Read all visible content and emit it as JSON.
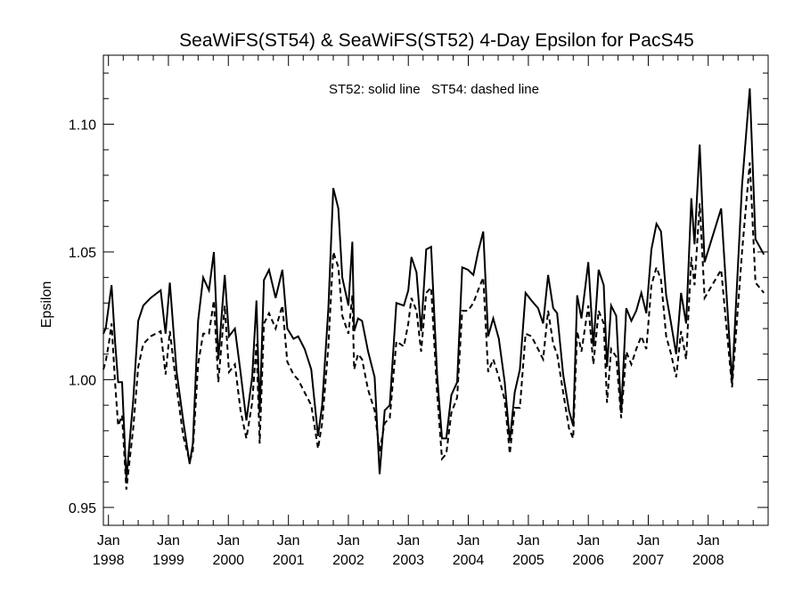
{
  "chart_data": {
    "type": "line",
    "title": "SeaWiFS(ST54) & SeaWiFS(ST52) 4-Day Epsilon for PacS45",
    "ylabel": "Epsilon",
    "xlabel": "",
    "annotation": "ST52: solid line   ST54: dashed line",
    "xlim": [
      "1997-12-01",
      "2008-12-31"
    ],
    "ylim": [
      0.943,
      1.127
    ],
    "yticks": [
      {
        "value": 0.95,
        "label": "0.95"
      },
      {
        "value": 1.0,
        "label": "1.00"
      },
      {
        "value": 1.05,
        "label": "1.05"
      },
      {
        "value": 1.1,
        "label": "1.10"
      }
    ],
    "xticks": [
      {
        "date": "1998-01-01",
        "month": "Jan",
        "year": "1998"
      },
      {
        "date": "1999-01-01",
        "month": "Jan",
        "year": "1999"
      },
      {
        "date": "2000-01-01",
        "month": "Jan",
        "year": "2000"
      },
      {
        "date": "2001-01-01",
        "month": "Jan",
        "year": "2001"
      },
      {
        "date": "2002-01-01",
        "month": "Jan",
        "year": "2002"
      },
      {
        "date": "2003-01-01",
        "month": "Jan",
        "year": "2003"
      },
      {
        "date": "2004-01-01",
        "month": "Jan",
        "year": "2004"
      },
      {
        "date": "2005-01-01",
        "month": "Jan",
        "year": "2005"
      },
      {
        "date": "2006-01-01",
        "month": "Jan",
        "year": "2006"
      },
      {
        "date": "2007-01-01",
        "month": "Jan",
        "year": "2007"
      },
      {
        "date": "2008-01-01",
        "month": "Jan",
        "year": "2008"
      }
    ],
    "grid": false,
    "series": [
      {
        "name": "ST52",
        "style": "solid",
        "color": "#000000",
        "points": [
          [
            "1997-12-01",
            1.018
          ],
          [
            "1997-12-15",
            1.02
          ],
          [
            "1998-01-05",
            1.03
          ],
          [
            "1998-01-20",
            1.037
          ],
          [
            "1998-02-10",
            1.015
          ],
          [
            "1998-03-01",
            0.999
          ],
          [
            "1998-03-25",
            0.999
          ],
          [
            "1998-04-20",
            0.961
          ],
          [
            "1998-06-01",
            0.992
          ],
          [
            "1998-07-01",
            1.023
          ],
          [
            "1998-08-01",
            1.029
          ],
          [
            "1998-09-15",
            1.032
          ],
          [
            "1998-11-15",
            1.035
          ],
          [
            "1998-12-15",
            1.018
          ],
          [
            "1999-01-10",
            1.038
          ],
          [
            "1999-02-20",
            1.003
          ],
          [
            "1999-04-01",
            0.984
          ],
          [
            "1999-05-10",
            0.967
          ],
          [
            "1999-05-30",
            0.975
          ],
          [
            "1999-07-01",
            1.023
          ],
          [
            "1999-08-01",
            1.04
          ],
          [
            "1999-09-05",
            1.035
          ],
          [
            "1999-10-05",
            1.05
          ],
          [
            "1999-11-01",
            1.008
          ],
          [
            "1999-12-10",
            1.041
          ],
          [
            "2000-01-05",
            1.017
          ],
          [
            "2000-02-10",
            1.02
          ],
          [
            "2000-03-15",
            1.003
          ],
          [
            "2000-04-20",
            0.984
          ],
          [
            "2000-05-25",
            1.001
          ],
          [
            "2000-06-20",
            1.031
          ],
          [
            "2000-07-10",
            0.987
          ],
          [
            "2000-08-05",
            1.039
          ],
          [
            "2000-09-05",
            1.043
          ],
          [
            "2000-10-15",
            1.032
          ],
          [
            "2000-11-25",
            1.043
          ],
          [
            "2000-12-25",
            1.02
          ],
          [
            "2001-02-01",
            1.016
          ],
          [
            "2001-03-01",
            1.017
          ],
          [
            "2001-04-10",
            1.012
          ],
          [
            "2001-05-20",
            1.004
          ],
          [
            "2001-06-30",
            0.978
          ],
          [
            "2001-07-25",
            0.99
          ],
          [
            "2001-09-01",
            1.028
          ],
          [
            "2001-10-01",
            1.075
          ],
          [
            "2001-11-01",
            1.067
          ],
          [
            "2001-11-25",
            1.04
          ],
          [
            "2002-01-01",
            1.029
          ],
          [
            "2002-01-25",
            1.054
          ],
          [
            "2002-02-05",
            1.019
          ],
          [
            "2002-03-01",
            1.024
          ],
          [
            "2002-03-25",
            1.023
          ],
          [
            "2002-05-01",
            1.011
          ],
          [
            "2002-06-10",
            1.001
          ],
          [
            "2002-07-10",
            0.963
          ],
          [
            "2002-08-10",
            0.988
          ],
          [
            "2002-09-10",
            0.99
          ],
          [
            "2002-10-20",
            1.03
          ],
          [
            "2002-12-05",
            1.029
          ],
          [
            "2003-01-01",
            1.035
          ],
          [
            "2003-01-20",
            1.048
          ],
          [
            "2003-02-20",
            1.042
          ],
          [
            "2003-03-20",
            1.019
          ],
          [
            "2003-04-20",
            1.051
          ],
          [
            "2003-05-20",
            1.052
          ],
          [
            "2003-06-25",
            1.002
          ],
          [
            "2003-07-25",
            0.977
          ],
          [
            "2003-08-20",
            0.977
          ],
          [
            "2003-09-20",
            0.994
          ],
          [
            "2003-10-25",
            0.999
          ],
          [
            "2003-11-25",
            1.044
          ],
          [
            "2003-12-30",
            1.043
          ],
          [
            "2004-02-01",
            1.041
          ],
          [
            "2004-03-01",
            1.05
          ],
          [
            "2004-04-01",
            1.058
          ],
          [
            "2004-05-01",
            1.017
          ],
          [
            "2004-06-01",
            1.024
          ],
          [
            "2004-07-05",
            1.016
          ],
          [
            "2004-08-10",
            0.999
          ],
          [
            "2004-09-10",
            0.976
          ],
          [
            "2004-10-10",
            0.995
          ],
          [
            "2004-11-10",
            1.004
          ],
          [
            "2004-12-15",
            1.034
          ],
          [
            "2005-01-20",
            1.031
          ],
          [
            "2005-03-01",
            1.028
          ],
          [
            "2005-04-01",
            1.022
          ],
          [
            "2005-05-01",
            1.041
          ],
          [
            "2005-06-01",
            1.028
          ],
          [
            "2005-06-25",
            1.026
          ],
          [
            "2005-08-01",
            1.002
          ],
          [
            "2005-09-05",
            0.988
          ],
          [
            "2005-10-01",
            0.982
          ],
          [
            "2005-10-25",
            1.033
          ],
          [
            "2005-11-20",
            1.024
          ],
          [
            "2006-01-01",
            1.046
          ],
          [
            "2006-02-01",
            1.013
          ],
          [
            "2006-03-05",
            1.043
          ],
          [
            "2006-04-05",
            1.037
          ],
          [
            "2006-04-25",
            1.005
          ],
          [
            "2006-05-20",
            1.029
          ],
          [
            "2006-06-20",
            1.025
          ],
          [
            "2006-07-20",
            0.987
          ],
          [
            "2006-08-20",
            1.028
          ],
          [
            "2006-09-20",
            1.023
          ],
          [
            "2006-10-20",
            1.027
          ],
          [
            "2006-11-20",
            1.034
          ],
          [
            "2006-12-20",
            1.026
          ],
          [
            "2007-01-20",
            1.051
          ],
          [
            "2007-02-20",
            1.061
          ],
          [
            "2007-03-20",
            1.058
          ],
          [
            "2007-04-20",
            1.033
          ],
          [
            "2007-05-20",
            1.022
          ],
          [
            "2007-06-20",
            1.01
          ],
          [
            "2007-07-20",
            1.034
          ],
          [
            "2007-08-20",
            1.022
          ],
          [
            "2007-09-20",
            1.071
          ],
          [
            "2007-10-10",
            1.053
          ],
          [
            "2007-11-10",
            1.092
          ],
          [
            "2007-12-10",
            1.046
          ],
          [
            "2008-03-20",
            1.067
          ],
          [
            "2008-05-25",
            0.999
          ],
          [
            "2008-07-25",
            1.076
          ],
          [
            "2008-09-10",
            1.114
          ],
          [
            "2008-10-15",
            1.055
          ],
          [
            "2008-12-05",
            1.049
          ]
        ]
      },
      {
        "name": "ST54",
        "style": "dashed",
        "color": "#000000",
        "points": [
          [
            "1997-12-01",
            1.004
          ],
          [
            "1997-12-15",
            1.007
          ],
          [
            "1998-01-05",
            1.015
          ],
          [
            "1998-01-20",
            1.022
          ],
          [
            "1998-02-10",
            0.999
          ],
          [
            "1998-03-01",
            0.982
          ],
          [
            "1998-03-25",
            0.986
          ],
          [
            "1998-04-20",
            0.957
          ],
          [
            "1998-06-01",
            0.981
          ],
          [
            "1998-07-01",
            1.005
          ],
          [
            "1998-08-01",
            1.014
          ],
          [
            "1998-09-15",
            1.017
          ],
          [
            "1998-11-15",
            1.019
          ],
          [
            "1998-12-15",
            1.002
          ],
          [
            "1999-01-10",
            1.019
          ],
          [
            "1999-02-20",
            0.997
          ],
          [
            "1999-04-01",
            0.978
          ],
          [
            "1999-05-10",
            0.968
          ],
          [
            "1999-05-30",
            0.972
          ],
          [
            "1999-07-01",
            1.006
          ],
          [
            "1999-08-01",
            1.018
          ],
          [
            "1999-09-05",
            1.018
          ],
          [
            "1999-10-05",
            1.031
          ],
          [
            "1999-11-01",
            0.999
          ],
          [
            "1999-12-10",
            1.029
          ],
          [
            "2000-01-05",
            1.003
          ],
          [
            "2000-02-10",
            1.006
          ],
          [
            "2000-03-15",
            0.988
          ],
          [
            "2000-04-20",
            0.977
          ],
          [
            "2000-05-25",
            0.991
          ],
          [
            "2000-06-20",
            1.014
          ],
          [
            "2000-07-10",
            0.975
          ],
          [
            "2000-08-05",
            1.022
          ],
          [
            "2000-09-05",
            1.026
          ],
          [
            "2000-10-15",
            1.02
          ],
          [
            "2000-11-25",
            1.029
          ],
          [
            "2000-12-25",
            1.007
          ],
          [
            "2001-02-01",
            1.002
          ],
          [
            "2001-03-01",
            1.0
          ],
          [
            "2001-04-10",
            0.995
          ],
          [
            "2001-05-20",
            0.99
          ],
          [
            "2001-06-30",
            0.973
          ],
          [
            "2001-07-25",
            0.983
          ],
          [
            "2001-09-01",
            1.013
          ],
          [
            "2001-10-01",
            1.05
          ],
          [
            "2001-11-01",
            1.044
          ],
          [
            "2001-11-25",
            1.025
          ],
          [
            "2002-01-01",
            1.018
          ],
          [
            "2002-01-25",
            1.033
          ],
          [
            "2002-02-05",
            1.004
          ],
          [
            "2002-03-01",
            1.01
          ],
          [
            "2002-03-25",
            1.008
          ],
          [
            "2002-05-01",
            0.996
          ],
          [
            "2002-06-10",
            0.988
          ],
          [
            "2002-07-10",
            0.972
          ],
          [
            "2002-08-10",
            0.983
          ],
          [
            "2002-09-10",
            0.985
          ],
          [
            "2002-10-20",
            1.015
          ],
          [
            "2002-12-05",
            1.013
          ],
          [
            "2003-01-01",
            1.022
          ],
          [
            "2003-01-20",
            1.032
          ],
          [
            "2003-02-20",
            1.027
          ],
          [
            "2003-03-20",
            1.011
          ],
          [
            "2003-04-20",
            1.034
          ],
          [
            "2003-05-20",
            1.036
          ],
          [
            "2003-06-25",
            0.995
          ],
          [
            "2003-07-25",
            0.969
          ],
          [
            "2003-08-20",
            0.971
          ],
          [
            "2003-09-20",
            0.987
          ],
          [
            "2003-10-25",
            0.993
          ],
          [
            "2003-11-25",
            1.027
          ],
          [
            "2003-12-30",
            1.027
          ],
          [
            "2004-02-01",
            1.03
          ],
          [
            "2004-03-01",
            1.035
          ],
          [
            "2004-04-01",
            1.04
          ],
          [
            "2004-05-01",
            1.003
          ],
          [
            "2004-06-01",
            1.008
          ],
          [
            "2004-07-05",
            1.001
          ],
          [
            "2004-08-10",
            0.992
          ],
          [
            "2004-09-10",
            0.971
          ],
          [
            "2004-10-10",
            0.989
          ],
          [
            "2004-11-10",
            0.989
          ],
          [
            "2004-12-15",
            1.018
          ],
          [
            "2005-01-20",
            1.017
          ],
          [
            "2005-03-01",
            1.012
          ],
          [
            "2005-04-01",
            1.008
          ],
          [
            "2005-05-01",
            1.027
          ],
          [
            "2005-06-01",
            1.014
          ],
          [
            "2005-06-25",
            1.01
          ],
          [
            "2005-08-01",
            0.995
          ],
          [
            "2005-09-05",
            0.981
          ],
          [
            "2005-10-01",
            0.977
          ],
          [
            "2005-10-25",
            1.019
          ],
          [
            "2005-11-20",
            1.011
          ],
          [
            "2006-01-01",
            1.029
          ],
          [
            "2006-02-01",
            1.006
          ],
          [
            "2006-03-05",
            1.027
          ],
          [
            "2006-04-05",
            1.022
          ],
          [
            "2006-04-25",
            0.991
          ],
          [
            "2006-05-20",
            1.012
          ],
          [
            "2006-06-20",
            1.009
          ],
          [
            "2006-07-20",
            0.985
          ],
          [
            "2006-08-20",
            1.011
          ],
          [
            "2006-09-20",
            1.006
          ],
          [
            "2006-10-20",
            1.012
          ],
          [
            "2006-11-20",
            1.017
          ],
          [
            "2006-12-20",
            1.012
          ],
          [
            "2007-01-20",
            1.037
          ],
          [
            "2007-02-20",
            1.044
          ],
          [
            "2007-03-20",
            1.039
          ],
          [
            "2007-04-20",
            1.017
          ],
          [
            "2007-05-20",
            1.01
          ],
          [
            "2007-06-20",
            1.001
          ],
          [
            "2007-07-20",
            1.019
          ],
          [
            "2007-08-20",
            1.008
          ],
          [
            "2007-09-20",
            1.048
          ],
          [
            "2007-10-10",
            1.037
          ],
          [
            "2007-11-10",
            1.069
          ],
          [
            "2007-12-10",
            1.032
          ],
          [
            "2008-03-20",
            1.043
          ],
          [
            "2008-05-25",
            0.997
          ],
          [
            "2008-07-25",
            1.05
          ],
          [
            "2008-09-10",
            1.085
          ],
          [
            "2008-10-15",
            1.038
          ],
          [
            "2008-12-05",
            1.034
          ]
        ]
      }
    ]
  }
}
